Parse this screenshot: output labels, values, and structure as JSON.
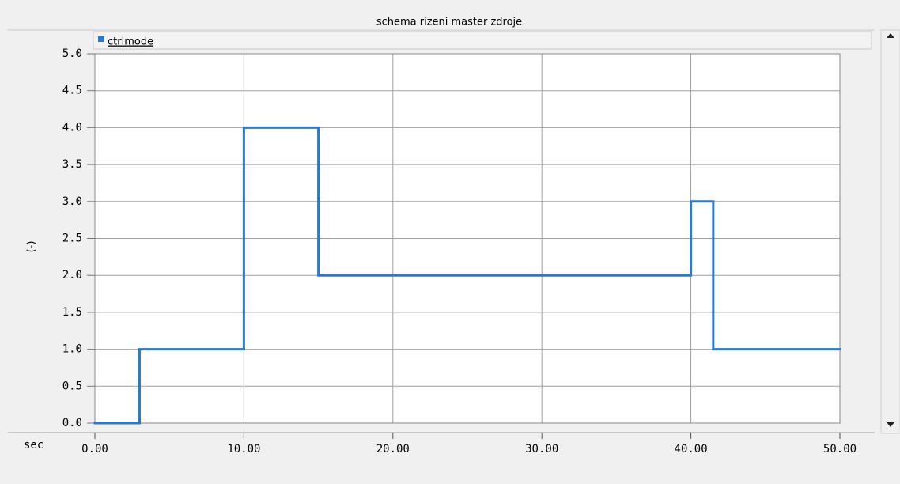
{
  "chart_data": {
    "type": "step",
    "title": "schema rizeni master zdroje",
    "ylabel": "(-)",
    "xlabel": "sec",
    "series": [
      {
        "name": "ctrlmode",
        "color": "#2878d4",
        "x": [
          0,
          3,
          10,
          15,
          40,
          41.5
        ],
        "values": [
          0,
          1,
          4,
          2,
          3,
          1
        ]
      }
    ],
    "xlim": [
      0,
      50
    ],
    "xticks": [
      {
        "value": 0,
        "label": "0.00"
      },
      {
        "value": 10,
        "label": "10.00"
      },
      {
        "value": 20,
        "label": "20.00"
      },
      {
        "value": 30,
        "label": "30.00"
      },
      {
        "value": 40,
        "label": "40.00"
      },
      {
        "value": 50,
        "label": "50.00"
      }
    ],
    "ylim": [
      0,
      5
    ],
    "yticks": [
      {
        "value": 0,
        "label": "0.0"
      },
      {
        "value": 0.5,
        "label": "0.5"
      },
      {
        "value": 1,
        "label": "1.0"
      },
      {
        "value": 1.5,
        "label": "1.5"
      },
      {
        "value": 2,
        "label": "2.0"
      },
      {
        "value": 2.5,
        "label": "2.5"
      },
      {
        "value": 3,
        "label": "3.0"
      },
      {
        "value": 3.5,
        "label": "3.5"
      },
      {
        "value": 4,
        "label": "4.0"
      },
      {
        "value": 4.5,
        "label": "4.5"
      },
      {
        "value": 5,
        "label": "5.0"
      }
    ],
    "grid": true
  }
}
